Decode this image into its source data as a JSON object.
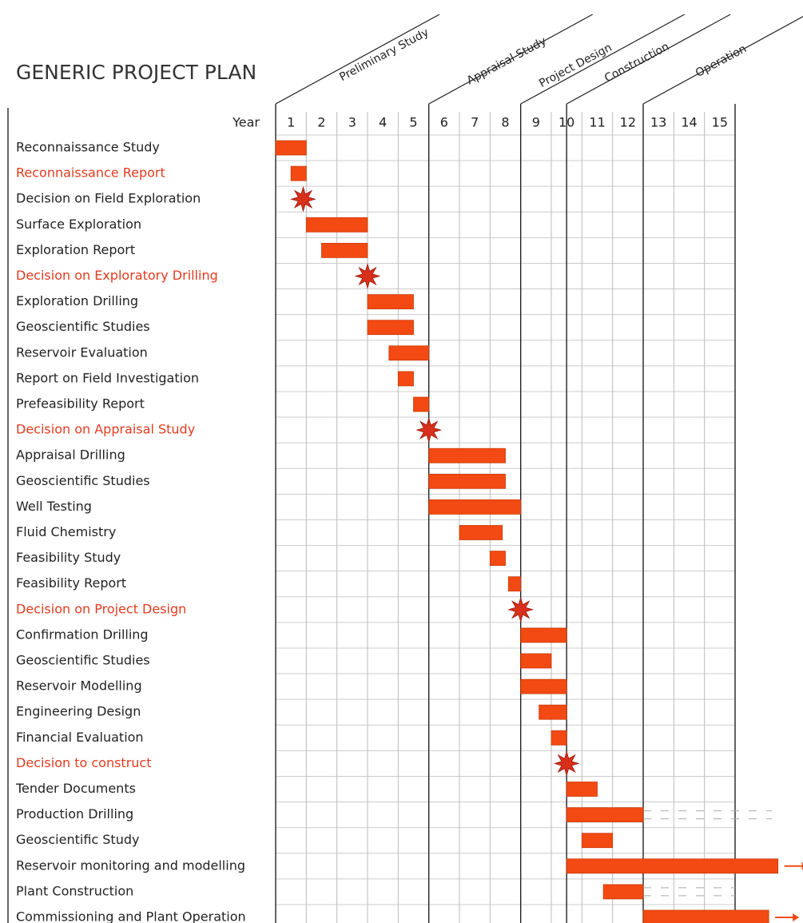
{
  "chart_data": {
    "type": "gantt",
    "title": "GENERIC PROJECT PLAN",
    "x_label": "Year",
    "year_columns": [
      1,
      2,
      3,
      4,
      5,
      6,
      7,
      8,
      9,
      10,
      11,
      12,
      13,
      14,
      15
    ],
    "xlim": [
      0,
      15
    ],
    "bar_color": "#f24a12",
    "milestone_color": "#d8301a",
    "highlight_color": "#e33b1f",
    "phases": [
      {
        "name": "Preliminary Study",
        "start": 0,
        "end": 5
      },
      {
        "name": "Appraisal Study",
        "start": 5,
        "end": 8
      },
      {
        "name": "Project Design",
        "start": 8,
        "end": 9.5
      },
      {
        "name": "Construction",
        "start": 9.5,
        "end": 12
      },
      {
        "name": "Operation",
        "start": 12,
        "end": 15
      }
    ],
    "tasks": [
      {
        "name": "Reconnaissance Study",
        "start": 0,
        "end": 1
      },
      {
        "name": "Reconnaissance Report",
        "start": 0.5,
        "end": 1,
        "highlight": true
      },
      {
        "name": "Decision on Field Exploration",
        "milestone": 0.9
      },
      {
        "name": "Surface Exploration",
        "start": 1,
        "end": 3
      },
      {
        "name": "Exploration Report",
        "start": 1.5,
        "end": 3
      },
      {
        "name": "Decision on Exploratory Drilling",
        "milestone": 3,
        "highlight": true
      },
      {
        "name": "Exploration Drilling",
        "start": 3,
        "end": 4.5
      },
      {
        "name": "Geoscientific Studies",
        "start": 3,
        "end": 4.5
      },
      {
        "name": "Reservoir Evaluation",
        "start": 3.7,
        "end": 5
      },
      {
        "name": "Report on Field Investigation",
        "start": 4,
        "end": 4.5
      },
      {
        "name": "Prefeasibility Report",
        "start": 4.5,
        "end": 5
      },
      {
        "name": "Decision on Appraisal Study",
        "milestone": 5,
        "highlight": true
      },
      {
        "name": "Appraisal Drilling",
        "start": 5,
        "end": 7.5
      },
      {
        "name": "Geoscientific Studies",
        "start": 5,
        "end": 7.5
      },
      {
        "name": "Well Testing",
        "start": 5,
        "end": 8
      },
      {
        "name": "Fluid Chemistry",
        "start": 6,
        "end": 7.4
      },
      {
        "name": "Feasibility Study",
        "start": 7,
        "end": 7.5
      },
      {
        "name": "Feasibility Report",
        "start": 7.6,
        "end": 8
      },
      {
        "name": "Decision on Project Design",
        "milestone": 8,
        "highlight": true
      },
      {
        "name": "Confirmation Drilling",
        "start": 8,
        "end": 9.5
      },
      {
        "name": "Geoscientific Studies",
        "start": 8,
        "end": 9
      },
      {
        "name": "Reservoir Modelling",
        "start": 8,
        "end": 9.5
      },
      {
        "name": "Engineering Design",
        "start": 8.6,
        "end": 9.5
      },
      {
        "name": "Financial Evaluation",
        "start": 9,
        "end": 9.5
      },
      {
        "name": "Decision to construct",
        "milestone": 9.5,
        "highlight": true
      },
      {
        "name": "Tender Documents",
        "start": 9.5,
        "end": 10.5
      },
      {
        "name": "Production Drilling",
        "start": 9.5,
        "end": 12,
        "dashed_to": 16.2
      },
      {
        "name": "Geoscientific Study",
        "start": 10,
        "end": 11
      },
      {
        "name": "Reservoir monitoring and modelling",
        "start": 9.5,
        "end": 16.4,
        "arrow": true
      },
      {
        "name": "Plant Construction",
        "start": 10.7,
        "end": 12,
        "dashed_to": 15
      },
      {
        "name": "Commissioning and Plant Operation",
        "start": 12,
        "end": 16.1,
        "arrow": true
      }
    ]
  }
}
